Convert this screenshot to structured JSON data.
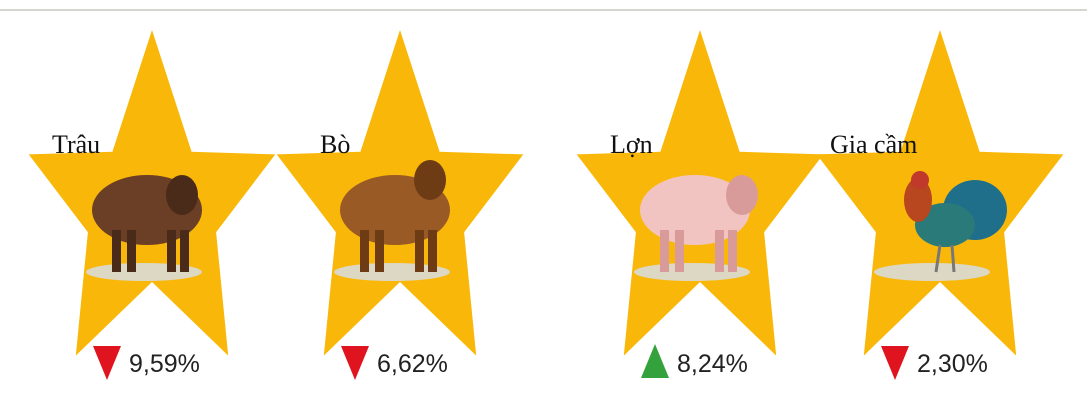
{
  "items": [
    {
      "label": "Trâu",
      "change": "9,59%",
      "direction": "down"
    },
    {
      "label": "Bò",
      "change": "6,62%",
      "direction": "down"
    },
    {
      "label": "Lợn",
      "change": "8,24%",
      "direction": "up"
    },
    {
      "label": "Gia cầm",
      "change": "2,30%",
      "direction": "down"
    }
  ]
}
